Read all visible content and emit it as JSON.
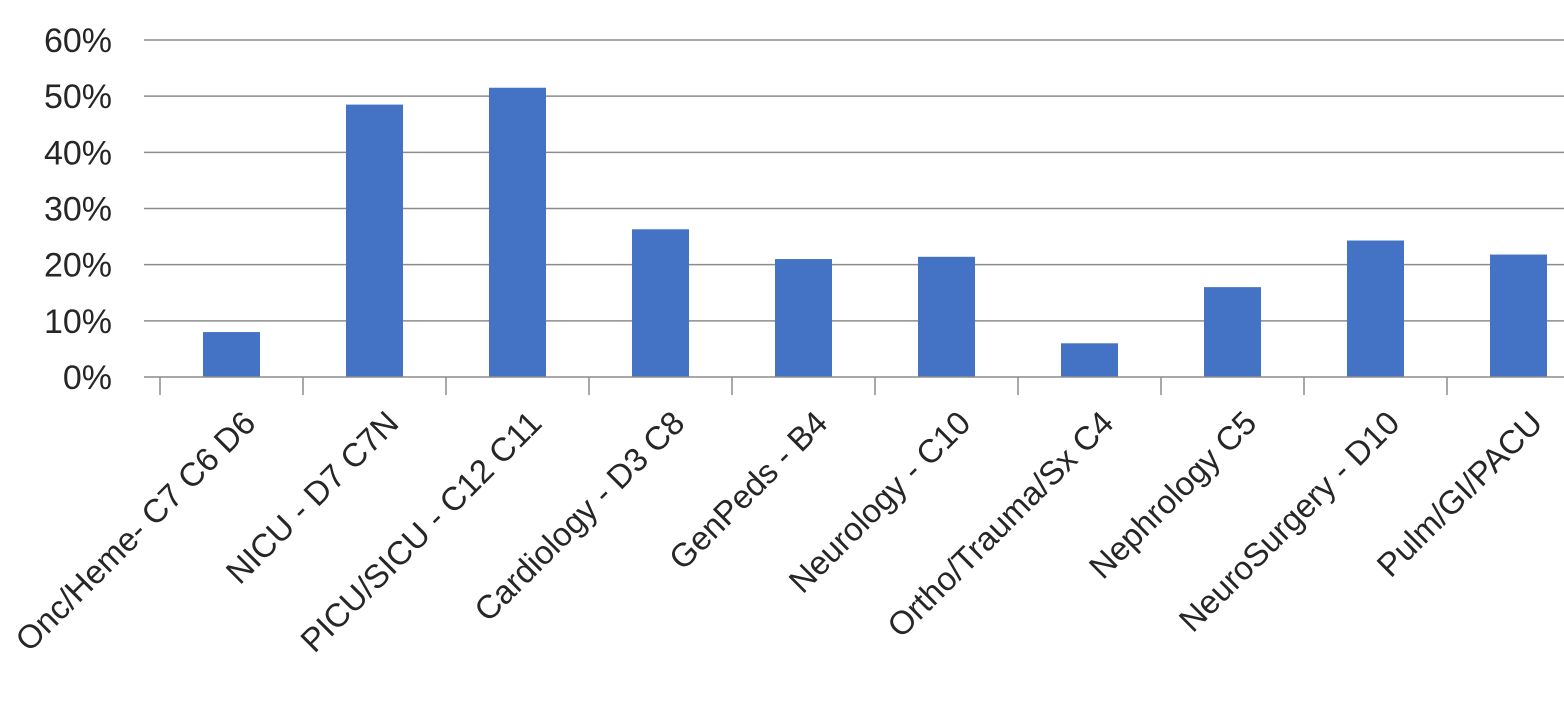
{
  "chart_data": {
    "type": "bar",
    "categories": [
      "Onc/Heme- C7 C6 D6",
      "NICU - D7 C7N",
      "PICU/SICU - C12 C11",
      "Cardiology - D3 C8",
      "GenPeds - B4",
      "Neurology - C10",
      "Ortho/Trauma/Sx C4",
      "Nephrology C5",
      "NeuroSurgery - D10",
      "Pulm/GI/PACU"
    ],
    "values": [
      0.08,
      0.485,
      0.515,
      0.263,
      0.21,
      0.214,
      0.06,
      0.16,
      0.243,
      0.218
    ],
    "yticks": [
      "0%",
      "10%",
      "20%",
      "30%",
      "40%",
      "50%",
      "60%"
    ],
    "ylim": [
      0,
      0.6
    ],
    "grid": true,
    "bar_color": "#4472c4",
    "grid_color": "#8c8c8c"
  }
}
